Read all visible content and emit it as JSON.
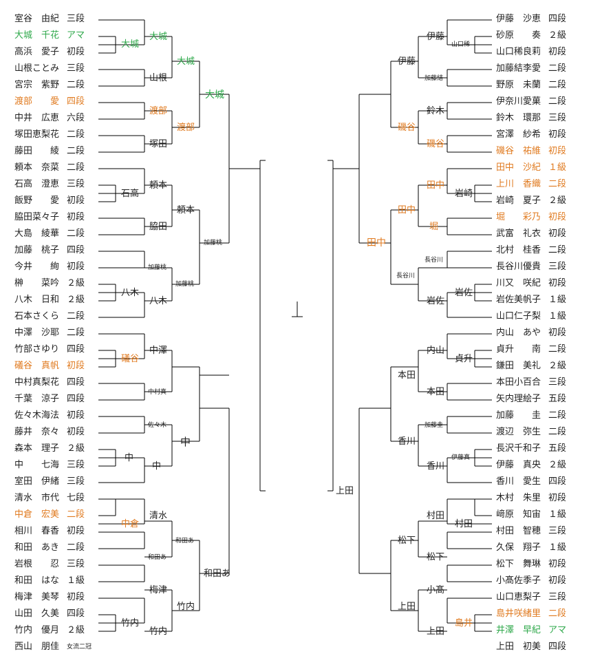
{
  "colors": {
    "line": "#000000",
    "green": "#2ea84a",
    "orange": "#e07a1f",
    "text": "#222222"
  },
  "left_players": [
    {
      "name": "室谷　由紀",
      "rank": "三段"
    },
    {
      "name": "大城　千花",
      "rank": "アマ",
      "c": "g"
    },
    {
      "name": "高浜　愛子",
      "rank": "初段"
    },
    {
      "name": "山根ことみ",
      "rank": "三段"
    },
    {
      "name": "宮宗　紫野",
      "rank": "二段"
    },
    {
      "name": "渡部　　愛",
      "rank": "四段",
      "c": "o"
    },
    {
      "name": "中井　広恵",
      "rank": "六段"
    },
    {
      "name": "塚田恵梨花",
      "rank": "二段"
    },
    {
      "name": "藤田　　綾",
      "rank": "二段"
    },
    {
      "name": "頼本　奈菜",
      "rank": "二段"
    },
    {
      "name": "石高　澄恵",
      "rank": "三段"
    },
    {
      "name": "飯野　　愛",
      "rank": "初段"
    },
    {
      "name": "脇田菜々子",
      "rank": "初段"
    },
    {
      "name": "大島　綾華",
      "rank": "二段"
    },
    {
      "name": "加藤　桃子",
      "rank": "四段"
    },
    {
      "name": "今井　　絢",
      "rank": "初段"
    },
    {
      "name": "榊　　菜吟",
      "rank": "２級"
    },
    {
      "name": "八木　日和",
      "rank": "２級"
    },
    {
      "name": "石本さくら",
      "rank": "二段"
    },
    {
      "name": "中澤　沙耶",
      "rank": "二段"
    },
    {
      "name": "竹部さゆり",
      "rank": "四段"
    },
    {
      "name": "礒谷　真帆",
      "rank": "初段",
      "c": "o"
    },
    {
      "name": "中村真梨花",
      "rank": "四段"
    },
    {
      "name": "千葉　涼子",
      "rank": "四段"
    },
    {
      "name": "佐々木海法",
      "rank": "初段"
    },
    {
      "name": "藤井　奈々",
      "rank": "初段"
    },
    {
      "name": "森本　理子",
      "rank": "２級"
    },
    {
      "name": "中　　七海",
      "rank": "三段"
    },
    {
      "name": "室田　伊緒",
      "rank": "三段"
    },
    {
      "name": "清水　市代",
      "rank": "七段"
    },
    {
      "name": "中倉　宏美",
      "rank": "二段",
      "c": "o"
    },
    {
      "name": "相川　春香",
      "rank": "初段"
    },
    {
      "name": "和田　あき",
      "rank": "二段"
    },
    {
      "name": "岩根　　忍",
      "rank": "三段"
    },
    {
      "name": "和田　はな",
      "rank": "１級"
    },
    {
      "name": "梅津　美琴",
      "rank": "初段"
    },
    {
      "name": "山田　久美",
      "rank": "四段"
    },
    {
      "name": "竹内　優月",
      "rank": "２級"
    },
    {
      "name": "西山　朋佳",
      "rank": "女流二冠"
    }
  ],
  "right_players": [
    {
      "name": "伊藤　沙恵",
      "rank": "四段"
    },
    {
      "name": "砂原　　奏",
      "rank": "２級"
    },
    {
      "name": "山口稀良莉",
      "rank": "初段"
    },
    {
      "name": "加藤結李愛",
      "rank": "二段"
    },
    {
      "name": "野原　未蘭",
      "rank": "二段"
    },
    {
      "name": "伊奈川愛菓",
      "rank": "二段"
    },
    {
      "name": "鈴木　環那",
      "rank": "三段"
    },
    {
      "name": "宮澤　紗希",
      "rank": "初段"
    },
    {
      "name": "磯谷　祐維",
      "rank": "初段",
      "c": "o"
    },
    {
      "name": "田中　沙紀",
      "rank": "１級",
      "c": "o"
    },
    {
      "name": "上川　香織",
      "rank": "二段",
      "c": "o"
    },
    {
      "name": "岩崎　夏子",
      "rank": "２級"
    },
    {
      "name": "堀　　彩乃",
      "rank": "初段",
      "c": "o"
    },
    {
      "name": "武富　礼衣",
      "rank": "初段"
    },
    {
      "name": "北村　桂香",
      "rank": "二段"
    },
    {
      "name": "長谷川優貴",
      "rank": "三段"
    },
    {
      "name": "川又　咲紀",
      "rank": "初段"
    },
    {
      "name": "岩佐美帆子",
      "rank": "１級"
    },
    {
      "name": "山口仁子梨",
      "rank": "１級"
    },
    {
      "name": "内山　あや",
      "rank": "初段"
    },
    {
      "name": "貞升　　南",
      "rank": "二段"
    },
    {
      "name": "鎌田　美礼",
      "rank": "２級"
    },
    {
      "name": "本田小百合",
      "rank": "三段"
    },
    {
      "name": "矢内理絵子",
      "rank": "五段"
    },
    {
      "name": "加藤　　圭",
      "rank": "二段"
    },
    {
      "name": "渡辺　弥生",
      "rank": "二段"
    },
    {
      "name": "長沢千和子",
      "rank": "五段"
    },
    {
      "name": "伊藤　真央",
      "rank": "２級"
    },
    {
      "name": "香川　愛生",
      "rank": "四段"
    },
    {
      "name": "木村　朱里",
      "rank": "初段"
    },
    {
      "name": "﨑原　知宙",
      "rank": "１級"
    },
    {
      "name": "村田　智穂",
      "rank": "三段"
    },
    {
      "name": "久保　翔子",
      "rank": "１級"
    },
    {
      "name": "松下　舞琳",
      "rank": "初段"
    },
    {
      "name": "小髙佐季子",
      "rank": "初段"
    },
    {
      "name": "山口恵梨子",
      "rank": "三段"
    },
    {
      "name": "島井咲緒里",
      "rank": "二段",
      "c": "o"
    },
    {
      "name": "井澤　早紀",
      "rank": "アマ",
      "c": "g"
    },
    {
      "name": "上田　初美",
      "rank": "四段"
    }
  ],
  "winners": {
    "l_ohshiro_1": "大城",
    "l_ishidaka": "石高",
    "l_yagi": "八木",
    "l_isoya": "礒谷",
    "l_naka_1": "中",
    "l_nakakura": "中倉",
    "l_takeuchi_1": "竹内",
    "l_ohshiro_2": "大城",
    "l_yamane": "山根",
    "l_watanabe_2": "渡部",
    "l_tsukada": "塚田",
    "l_yorimoto_2": "頼本",
    "l_wakita": "脇田",
    "l_kato_2": "加藤桃",
    "l_yagi_2": "八木",
    "l_nakazawa": "中澤",
    "l_nakamura": "中村真",
    "l_sasaki": "佐々木",
    "l_naka_2": "中",
    "l_shimizu": "清水",
    "l_wadaa": "和田あ",
    "l_umezu": "梅津",
    "l_takeuchi_2": "竹内",
    "l_ohshiro_3": "大城",
    "l_watanabe_3": "渡部",
    "l_yorimoto_3": "頼本",
    "l_kato_3": "加藤桃",
    "l_nakazawa_3": "中",
    "l_wadaa_3": "和田あ",
    "l_takeuchi_3": "竹内",
    "l_ohshiro_4": "大城",
    "l_kato_4": "加藤桃",
    "l_naka_4": "中",
    "l_wadaa_4": "和田あ",
    "r_yamaguchi_1": "山口稀",
    "r_iwasaki_1": "岩崎",
    "r_iwasa_1": "岩佐",
    "r_sadamasu_1": "貞升",
    "r_itoma_1": "伊藤真",
    "r_murata_1": "村田",
    "r_shimai_1": "島井",
    "r_ito_2": "伊藤",
    "r_katoyu_2": "加藤結",
    "r_suzuki_2": "鈴木",
    "r_isoya_2": "磯谷",
    "r_tanaka_2": "田中",
    "r_hori_2": "堀",
    "r_hasegawa_2": "長谷川",
    "r_iwasa_2": "岩佐",
    "r_uchiyama_2": "内山",
    "r_honda_2": "本田",
    "r_katok_2": "加藤圭",
    "r_kagawa_2": "香川",
    "r_murata_2": "村田",
    "r_matsushita_2": "松下",
    "r_kodaka_2": "小髙",
    "r_ueda_2": "上田",
    "r_ito_3": "伊藤",
    "r_isoya_3": "磯谷",
    "r_tanaka_3": "田中",
    "r_hasegawa_3": "長谷川",
    "r_honda_3": "本田",
    "r_kagawa_3": "香川",
    "r_matsushita_3": "松下",
    "r_ueda_3": "上田",
    "r_tanaka_4": "田中",
    "r_ueda_4": "上田"
  }
}
